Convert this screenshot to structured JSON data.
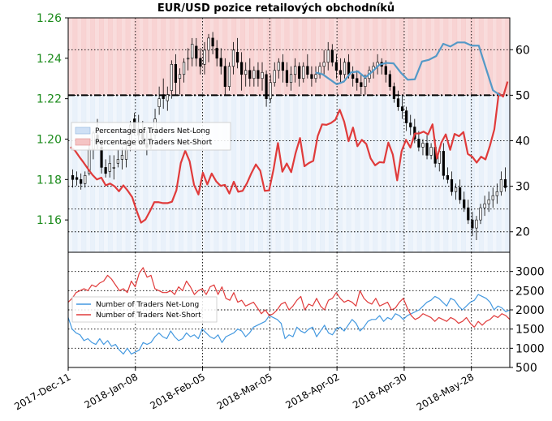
{
  "title": "EUR/USD pozice retailových obchodníků",
  "colors": {
    "long_fill": "#cfe0f5",
    "short_fill": "#f5c4c4",
    "long_line": "#5499c7",
    "short_line": "#e03b3b",
    "candle": "#000000",
    "left_axis": "#1a8a1a",
    "legend2_long": "#4499e0",
    "legend2_short": "#e03b3b"
  },
  "chart_data": [
    {
      "type": "candlestick+line",
      "panel": "top",
      "left_axis": {
        "ylim": [
          1.144,
          1.26
        ],
        "ticks": [
          "1.16",
          "1.18",
          "1.20",
          "1.22",
          "1.24",
          "1.26"
        ]
      },
      "right_axis": {
        "ylim": [
          15.5,
          67
        ],
        "ticks": [
          "20",
          "30",
          "40",
          "50",
          "60"
        ]
      },
      "threshold": 50,
      "legend": {
        "position": "center-left",
        "entries": [
          "Percentage of Traders Net-Long",
          "Percentage of Traders Net-Short"
        ]
      },
      "long_series_from_index": 56,
      "pct_short": [
        38.6,
        37.9,
        36.5,
        35.2,
        33.8,
        32.5,
        31.5,
        31.9,
        30.2,
        30.6,
        30.0,
        28.9,
        30.2,
        29.0,
        27.6,
        24.6,
        22.0,
        22.7,
        24.5,
        26.5,
        26.5,
        26.3,
        26.3,
        26.6,
        29.1,
        35.1,
        37.8,
        35.5,
        30.3,
        28.2,
        33.0,
        30.4,
        32.8,
        31.1,
        30.1,
        30.3,
        28.4,
        31.0,
        28.8,
        29.0,
        30.7,
        32.9,
        34.8,
        33.4,
        29.0,
        29.1,
        33.7,
        39.5,
        33.2,
        35.0,
        33.1,
        37.3,
        40.6,
        34.4,
        35.1,
        35.6,
        41.0,
        43.6,
        43.5,
        43.9,
        44.6,
        46.8,
        44.2,
        39.9,
        42.9,
        38.8,
        40.2,
        39.3,
        36.1,
        34.6,
        35.3,
        35.2,
        39.6,
        37.0,
        31.3,
        37.7,
        40.2,
        38.5,
        41.6,
        41.6,
        42.0,
        41.4,
        43.6,
        36.1,
        39.6,
        41.4,
        38.0,
        41.5,
        41.0,
        41.9,
        37.1,
        36.5,
        35.2,
        36.5,
        35.9,
        38.9,
        42.5,
        50.4,
        49.7,
        53.0
      ],
      "pct_long": [
        55.0,
        54.6,
        53.5,
        52.4,
        53.0,
        55.0,
        55.2,
        53.9,
        55.2,
        56.7,
        57.1,
        57.0,
        55.0,
        53.4,
        53.5,
        57.4,
        57.8,
        58.6,
        61.3,
        60.7,
        61.6,
        61.6,
        60.9,
        60.9,
        56.0,
        51.1,
        50.0
      ],
      "candles_ohlc": [
        [
          1.182,
          1.185,
          1.176,
          1.18
        ],
        [
          1.181,
          1.184,
          1.177,
          1.18
        ],
        [
          1.18,
          1.183,
          1.175,
          1.178
        ],
        [
          1.178,
          1.184,
          1.176,
          1.182
        ],
        [
          1.183,
          1.2,
          1.182,
          1.195
        ],
        [
          1.195,
          1.204,
          1.19,
          1.203
        ],
        [
          1.202,
          1.21,
          1.195,
          1.198
        ],
        [
          1.196,
          1.2,
          1.183,
          1.186
        ],
        [
          1.186,
          1.19,
          1.181,
          1.183
        ],
        [
          1.184,
          1.192,
          1.181,
          1.188
        ],
        [
          1.186,
          1.192,
          1.18,
          1.186
        ],
        [
          1.188,
          1.195,
          1.186,
          1.19
        ],
        [
          1.19,
          1.196,
          1.185,
          1.192
        ],
        [
          1.19,
          1.198,
          1.186,
          1.195
        ],
        [
          1.196,
          1.209,
          1.194,
          1.207
        ],
        [
          1.21,
          1.213,
          1.202,
          1.205
        ],
        [
          1.205,
          1.212,
          1.198,
          1.202
        ],
        [
          1.204,
          1.209,
          1.197,
          1.2
        ],
        [
          1.198,
          1.204,
          1.192,
          1.196
        ],
        [
          1.197,
          1.204,
          1.195,
          1.2
        ],
        [
          1.202,
          1.215,
          1.2,
          1.21
        ],
        [
          1.216,
          1.226,
          1.212,
          1.22
        ],
        [
          1.222,
          1.23,
          1.215,
          1.22
        ],
        [
          1.219,
          1.226,
          1.214,
          1.222
        ],
        [
          1.224,
          1.239,
          1.22,
          1.237
        ],
        [
          1.237,
          1.242,
          1.222,
          1.228
        ],
        [
          1.23,
          1.235,
          1.222,
          1.232
        ],
        [
          1.232,
          1.24,
          1.228,
          1.238
        ],
        [
          1.24,
          1.245,
          1.234,
          1.24
        ],
        [
          1.24,
          1.25,
          1.236,
          1.247
        ],
        [
          1.246,
          1.25,
          1.236,
          1.24
        ],
        [
          1.24,
          1.245,
          1.232,
          1.236
        ],
        [
          1.237,
          1.248,
          1.232,
          1.244
        ],
        [
          1.244,
          1.252,
          1.238,
          1.25
        ],
        [
          1.25,
          1.253,
          1.242,
          1.246
        ],
        [
          1.245,
          1.249,
          1.236,
          1.24
        ],
        [
          1.24,
          1.245,
          1.232,
          1.236
        ],
        [
          1.236,
          1.24,
          1.222,
          1.226
        ],
        [
          1.226,
          1.238,
          1.224,
          1.236
        ],
        [
          1.236,
          1.248,
          1.232,
          1.244
        ],
        [
          1.243,
          1.25,
          1.235,
          1.238
        ],
        [
          1.238,
          1.243,
          1.224,
          1.232
        ],
        [
          1.232,
          1.238,
          1.226,
          1.234
        ],
        [
          1.234,
          1.24,
          1.226,
          1.23
        ],
        [
          1.23,
          1.236,
          1.226,
          1.234
        ],
        [
          1.234,
          1.238,
          1.226,
          1.23
        ],
        [
          1.23,
          1.238,
          1.224,
          1.233
        ],
        [
          1.232,
          1.234,
          1.216,
          1.22
        ],
        [
          1.22,
          1.232,
          1.218,
          1.228
        ],
        [
          1.228,
          1.238,
          1.226,
          1.234
        ],
        [
          1.234,
          1.24,
          1.23,
          1.238
        ],
        [
          1.238,
          1.242,
          1.228,
          1.234
        ],
        [
          1.234,
          1.238,
          1.226,
          1.228
        ],
        [
          1.228,
          1.236,
          1.224,
          1.232
        ],
        [
          1.232,
          1.24,
          1.228,
          1.236
        ],
        [
          1.236,
          1.238,
          1.226,
          1.23
        ],
        [
          1.23,
          1.238,
          1.228,
          1.236
        ],
        [
          1.236,
          1.242,
          1.23,
          1.232
        ],
        [
          1.232,
          1.236,
          1.226,
          1.23
        ],
        [
          1.23,
          1.236,
          1.228,
          1.232
        ],
        [
          1.232,
          1.238,
          1.23,
          1.236
        ],
        [
          1.236,
          1.244,
          1.232,
          1.238
        ],
        [
          1.238,
          1.248,
          1.234,
          1.244
        ],
        [
          1.244,
          1.247,
          1.236,
          1.238
        ],
        [
          1.238,
          1.242,
          1.23,
          1.234
        ],
        [
          1.234,
          1.24,
          1.228,
          1.232
        ],
        [
          1.232,
          1.24,
          1.23,
          1.238
        ],
        [
          1.238,
          1.242,
          1.23,
          1.232
        ],
        [
          1.232,
          1.236,
          1.226,
          1.23
        ],
        [
          1.23,
          1.234,
          1.224,
          1.228
        ],
        [
          1.228,
          1.232,
          1.222,
          1.226
        ],
        [
          1.226,
          1.232,
          1.222,
          1.23
        ],
        [
          1.23,
          1.236,
          1.228,
          1.234
        ],
        [
          1.234,
          1.238,
          1.23,
          1.236
        ],
        [
          1.236,
          1.242,
          1.232,
          1.238
        ],
        [
          1.238,
          1.24,
          1.232,
          1.236
        ],
        [
          1.236,
          1.239,
          1.228,
          1.232
        ],
        [
          1.232,
          1.234,
          1.224,
          1.226
        ],
        [
          1.226,
          1.228,
          1.218,
          1.22
        ],
        [
          1.22,
          1.224,
          1.214,
          1.216
        ],
        [
          1.216,
          1.222,
          1.21,
          1.214
        ],
        [
          1.214,
          1.216,
          1.204,
          1.208
        ],
        [
          1.208,
          1.212,
          1.202,
          1.206
        ],
        [
          1.206,
          1.21,
          1.198,
          1.2
        ],
        [
          1.2,
          1.204,
          1.194,
          1.196
        ],
        [
          1.196,
          1.2,
          1.192,
          1.198
        ],
        [
          1.198,
          1.202,
          1.19,
          1.192
        ],
        [
          1.192,
          1.198,
          1.19,
          1.196
        ],
        [
          1.196,
          1.2,
          1.186,
          1.188
        ],
        [
          1.188,
          1.196,
          1.184,
          1.194
        ],
        [
          1.194,
          1.198,
          1.18,
          1.182
        ],
        [
          1.182,
          1.186,
          1.178,
          1.18
        ],
        [
          1.18,
          1.184,
          1.172,
          1.174
        ],
        [
          1.174,
          1.178,
          1.17,
          1.176
        ],
        [
          1.176,
          1.18,
          1.168,
          1.17
        ],
        [
          1.17,
          1.174,
          1.164,
          1.166
        ],
        [
          1.166,
          1.17,
          1.158,
          1.16
        ],
        [
          1.16,
          1.164,
          1.152,
          1.156
        ],
        [
          1.156,
          1.162,
          1.15,
          1.16
        ],
        [
          1.16,
          1.168,
          1.158,
          1.166
        ],
        [
          1.166,
          1.172,
          1.162,
          1.168
        ],
        [
          1.168,
          1.174,
          1.164,
          1.17
        ],
        [
          1.17,
          1.176,
          1.166,
          1.172
        ],
        [
          1.172,
          1.178,
          1.168,
          1.174
        ],
        [
          1.174,
          1.184,
          1.172,
          1.18
        ],
        [
          1.18,
          1.186,
          1.174,
          1.176
        ]
      ]
    },
    {
      "type": "line",
      "panel": "bottom",
      "right_axis": {
        "ylim": [
          500,
          3500
        ],
        "ticks": [
          "500",
          "1000",
          "1500",
          "2000",
          "2500",
          "3000"
        ]
      },
      "legend": {
        "position": "upper-left",
        "entries": [
          "Number of Traders Net-Long",
          "Number of Traders Net-Short"
        ]
      },
      "series": [
        {
          "name": "Number of Traders Net-Long",
          "values": [
            1800,
            1500,
            1400,
            1350,
            1200,
            1250,
            1150,
            1100,
            1250,
            1100,
            1200,
            1050,
            1100,
            950,
            850,
            1000,
            850,
            900,
            950,
            1150,
            1100,
            1150,
            1300,
            1400,
            1300,
            1250,
            1450,
            1300,
            1200,
            1250,
            1400,
            1300,
            1350,
            1250,
            1500,
            1400,
            1300,
            1250,
            1350,
            1150,
            1300,
            1350,
            1400,
            1500,
            1450,
            1300,
            1400,
            1550,
            1600,
            1650,
            1700,
            1850,
            1800,
            1750,
            1650,
            1250,
            1350,
            1300,
            1550,
            1450,
            1400,
            1500,
            1550,
            1300,
            1450,
            1600,
            1400,
            1350,
            1500,
            1550,
            1450,
            1600,
            1750,
            1650,
            1450,
            1550,
            1700,
            1750,
            1750,
            1850,
            1700,
            1800,
            1750,
            1900,
            1850,
            1750,
            1850,
            1900,
            1950,
            2000,
            2100,
            2200,
            2250,
            2350,
            2300,
            2200,
            2100,
            2300,
            2250,
            2100,
            2000,
            2100,
            2200,
            2250,
            2400,
            2350,
            2300,
            2200,
            2000,
            2100,
            2050,
            1950,
            2000
          ]
        },
        {
          "name": "Number of Traders Net-Short",
          "values": [
            2200,
            2300,
            2450,
            2500,
            2550,
            2500,
            2650,
            2600,
            2700,
            2750,
            2900,
            2800,
            2650,
            2500,
            2550,
            2450,
            2750,
            2600,
            2950,
            3100,
            2850,
            2900,
            2550,
            2500,
            2450,
            2450,
            2500,
            2400,
            2600,
            2500,
            2750,
            2600,
            2400,
            2500,
            2550,
            2400,
            2600,
            2650,
            2400,
            2600,
            2300,
            2250,
            2450,
            2200,
            2250,
            2100,
            2150,
            2200,
            2050,
            1900,
            2000,
            1850,
            1900,
            2000,
            2150,
            2200,
            2000,
            2100,
            2250,
            2350,
            2000,
            2150,
            2100,
            2300,
            2100,
            2000,
            2250,
            2300,
            2450,
            2300,
            2200,
            2250,
            2200,
            2100,
            2500,
            2300,
            2200,
            2150,
            2300,
            2100,
            2150,
            2200,
            2000,
            2050,
            2200,
            2300,
            2050,
            1850,
            1750,
            1800,
            1900,
            1850,
            1800,
            1700,
            1800,
            1750,
            1700,
            1800,
            1750,
            1650,
            1700,
            1800,
            1650,
            1550,
            1700,
            1600,
            1700,
            1750,
            1850,
            1800,
            1900,
            1850,
            1750
          ]
        }
      ]
    },
    {
      "type": "x-axis",
      "ticks": [
        "2017-Dec-11",
        "2018-Jan-08",
        "2018-Feb-05",
        "2018-Mar-05",
        "2018-Apr-02",
        "2018-Apr-30",
        "2018-May-28"
      ]
    }
  ]
}
